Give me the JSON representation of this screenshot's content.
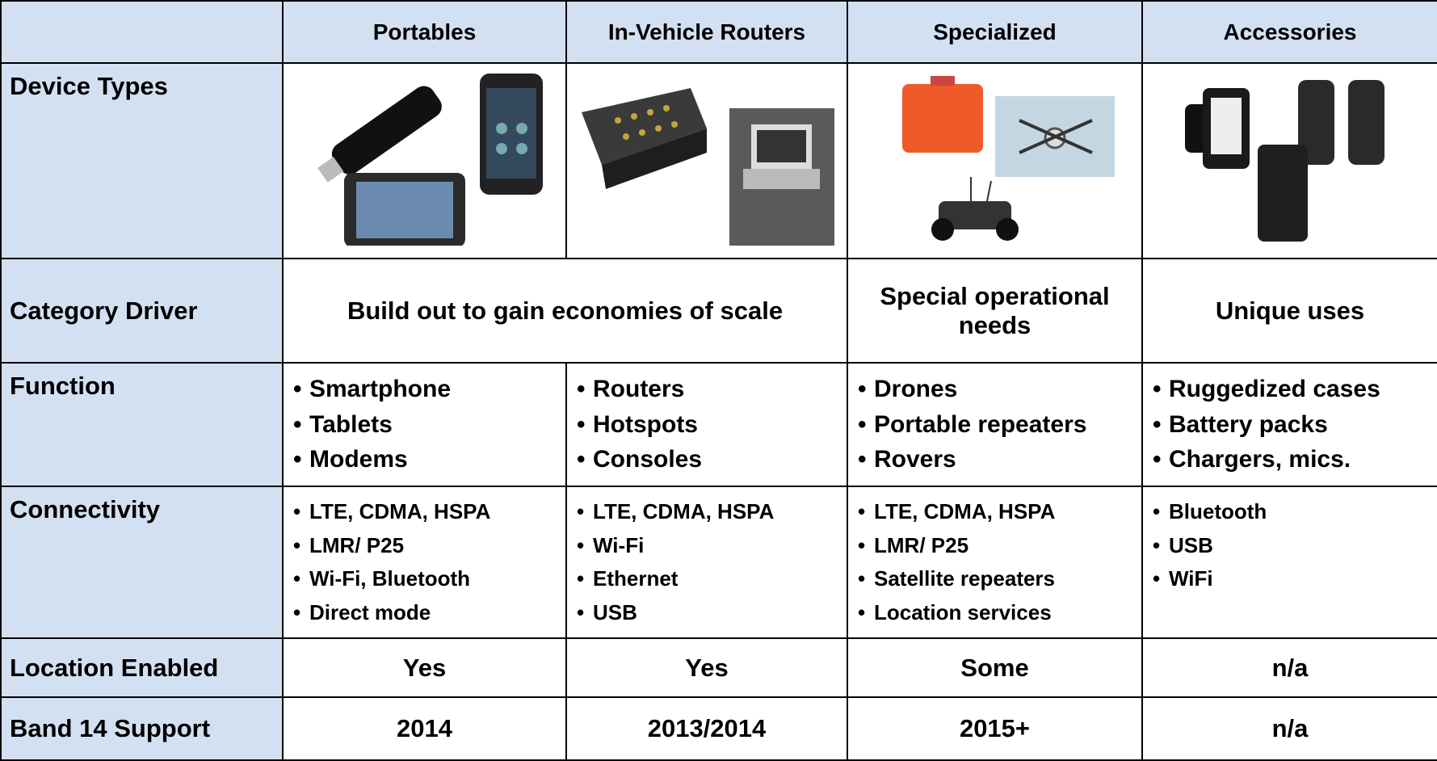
{
  "table": {
    "header": [
      "Portables",
      "In-Vehicle Routers",
      "Specialized",
      "Accessories"
    ],
    "rows": {
      "device_types": {
        "label": "Device Types"
      },
      "category_driver": {
        "label": "Category Driver",
        "cells": [
          "Build out to gain economies of scale",
          "Special operational needs",
          "Unique uses"
        ]
      },
      "function": {
        "label": "Function",
        "cells": [
          [
            "Smartphone",
            "Tablets",
            "Modems"
          ],
          [
            "Routers",
            "Hotspots",
            "Consoles"
          ],
          [
            "Drones",
            "Portable repeaters",
            "Rovers"
          ],
          [
            "Ruggedized cases",
            "Battery packs",
            "Chargers, mics."
          ]
        ]
      },
      "connectivity": {
        "label": "Connectivity",
        "cells": [
          [
            "LTE, CDMA, HSPA",
            "LMR/ P25",
            "Wi-Fi, Bluetooth",
            "Direct mode"
          ],
          [
            "LTE, CDMA, HSPA",
            "Wi-Fi",
            "Ethernet",
            "USB"
          ],
          [
            "LTE, CDMA, HSPA",
            "LMR/ P25",
            "Satellite repeaters",
            "Location services"
          ],
          [
            "Bluetooth",
            "USB",
            "WiFi"
          ]
        ]
      },
      "location_enabled": {
        "label": "Location Enabled",
        "cells": [
          "Yes",
          "Yes",
          "Some",
          "n/a"
        ]
      },
      "band14": {
        "label": "Band 14 Support",
        "cells": [
          "2014",
          "2013/2014",
          "2015+",
          "n/a"
        ]
      }
    }
  }
}
